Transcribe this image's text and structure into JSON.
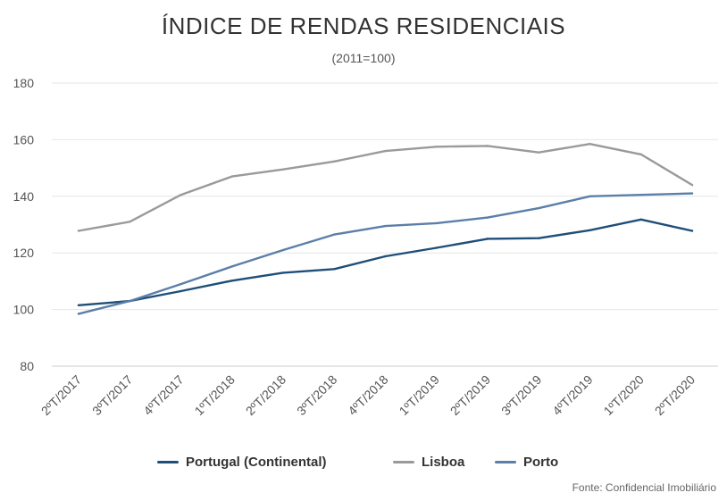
{
  "chart_data": {
    "type": "line",
    "title": "ÍNDICE DE RENDAS RESIDENCIAIS",
    "subtitle": "(2011=100)",
    "categories": [
      "2ºT/2017",
      "3ºT/2017",
      "4ºT/2017",
      "1ºT/2018",
      "2ºT/2018",
      "3ºT/2018",
      "4ºT/2018",
      "1ºT/2019",
      "2ºT/2019",
      "3ºT/2019",
      "4ºT/2019",
      "1ºT/2020",
      "2ºT/2020"
    ],
    "ylim": [
      80,
      180
    ],
    "yticks": [
      80,
      100,
      120,
      140,
      160,
      180
    ],
    "grid": true,
    "legend_position": "bottom",
    "series": [
      {
        "name": "Portugal (Continental)",
        "color": "#1f4e79",
        "values": [
          101.5,
          103,
          106.5,
          110.2,
          113,
          114.3,
          118.8,
          121.8,
          125,
          125.2,
          128,
          131.8,
          127.8
        ]
      },
      {
        "name": "Lisboa",
        "color": "#9a9a9a",
        "values": [
          127.8,
          131,
          140.5,
          147,
          149.5,
          152.3,
          156,
          157.5,
          157.8,
          155.5,
          158.5,
          154.8,
          144
        ]
      },
      {
        "name": "Porto",
        "color": "#5b7fa8",
        "values": [
          98.5,
          103,
          109,
          115.2,
          121,
          126.5,
          129.5,
          130.5,
          132.5,
          135.8,
          140,
          140.5,
          141
        ]
      }
    ],
    "source": "Fonte: Confidencial Imobiliário"
  }
}
